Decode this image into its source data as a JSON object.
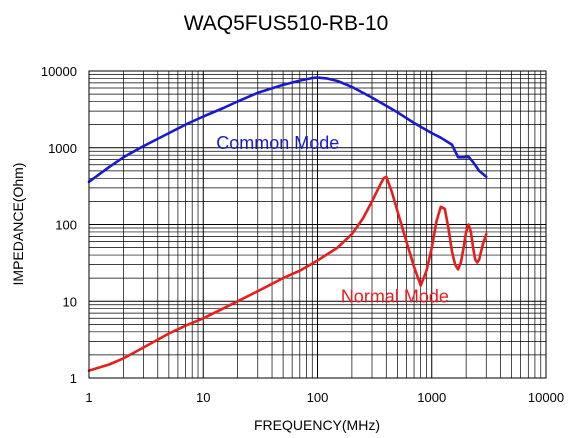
{
  "chart_data": {
    "type": "line",
    "title": "WAQ5FUS510-RB-10",
    "xlabel": "FREQUENCY(MHz)",
    "ylabel": "IMPEDANCE(Ohm)",
    "x_scale": "log",
    "y_scale": "log",
    "xlim": [
      1,
      10000
    ],
    "ylim": [
      1,
      10000
    ],
    "x_ticks": [
      "1",
      "10",
      "100",
      "1000",
      "10000"
    ],
    "y_ticks": [
      "1",
      "10",
      "100",
      "1000",
      "10000"
    ],
    "grid": true,
    "series": [
      {
        "name": "Common Mode",
        "color": "#1a1acc",
        "x": [
          1,
          1.5,
          2,
          3,
          5,
          7,
          10,
          15,
          20,
          30,
          50,
          70,
          90,
          100,
          120,
          150,
          200,
          300,
          500,
          700,
          1000,
          1200,
          1500,
          1700,
          1900,
          2100,
          2300,
          2600,
          3000
        ],
        "y": [
          360,
          560,
          750,
          1050,
          1550,
          2000,
          2550,
          3300,
          4000,
          5200,
          6600,
          7500,
          8100,
          8200,
          8000,
          7400,
          6200,
          4500,
          2900,
          2100,
          1550,
          1350,
          1100,
          750,
          750,
          760,
          650,
          500,
          420
        ]
      },
      {
        "name": "Normal Mode",
        "color": "#e61e1e",
        "x": [
          1,
          1.5,
          2,
          3,
          5,
          7,
          10,
          20,
          30,
          50,
          70,
          100,
          150,
          200,
          250,
          300,
          350,
          380,
          400,
          450,
          500,
          600,
          700,
          800,
          900,
          1000,
          1100,
          1200,
          1300,
          1400,
          1500,
          1600,
          1700,
          1800,
          1900,
          2000,
          2100,
          2200,
          2300,
          2400,
          2500,
          2600,
          2800,
          3000
        ],
        "y": [
          1.25,
          1.5,
          1.8,
          2.5,
          3.8,
          4.8,
          6,
          10,
          13.5,
          20,
          25,
          34,
          50,
          75,
          120,
          200,
          320,
          400,
          420,
          260,
          150,
          60,
          28,
          16,
          25,
          50,
          110,
          170,
          160,
          90,
          45,
          30,
          26,
          32,
          50,
          80,
          100,
          80,
          50,
          35,
          32,
          35,
          55,
          75
        ]
      }
    ]
  }
}
